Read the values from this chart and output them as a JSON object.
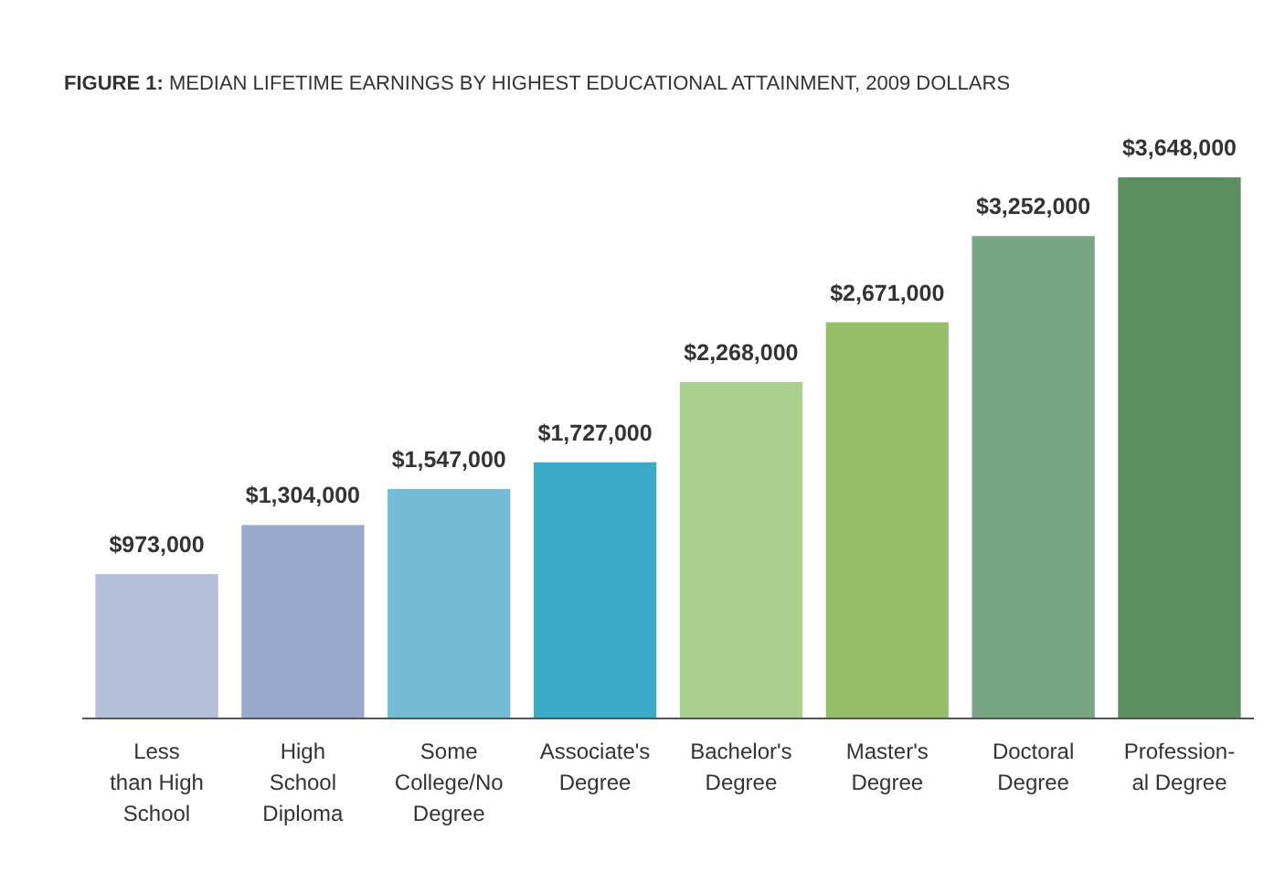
{
  "chart_data": {
    "type": "bar",
    "title": "FIGURE 1: MEDIAN LIFETIME EARNINGS BY HIGHEST EDUCATIONAL ATTAINMENT, 2009 DOLLARS",
    "categories": [
      "Less\nthan High\nSchool",
      "High\nSchool\nDiploma",
      "Some\nCollege/No\nDegree",
      "Associate's\nDegree",
      "Bachelor's\nDegree",
      "Master's\nDegree",
      "Doctoral\nDegree",
      "Profession-\nal Degree"
    ],
    "values": [
      973000,
      1304000,
      1547000,
      1727000,
      2268000,
      2671000,
      3252000,
      3648000
    ],
    "colors": [
      "#b4bfda",
      "#98a9cb",
      "#72bcd5",
      "#3aaac9",
      "#a9d08e",
      "#94bf68",
      "#78a583",
      "#5a8f5f"
    ],
    "value_labels": [
      "$973,000",
      "$1,304,000",
      "$1,547,000",
      "$1,727,000",
      "$2,268,000",
      "$2,671,000",
      "$3,252,000",
      "$3,648,000"
    ]
  }
}
